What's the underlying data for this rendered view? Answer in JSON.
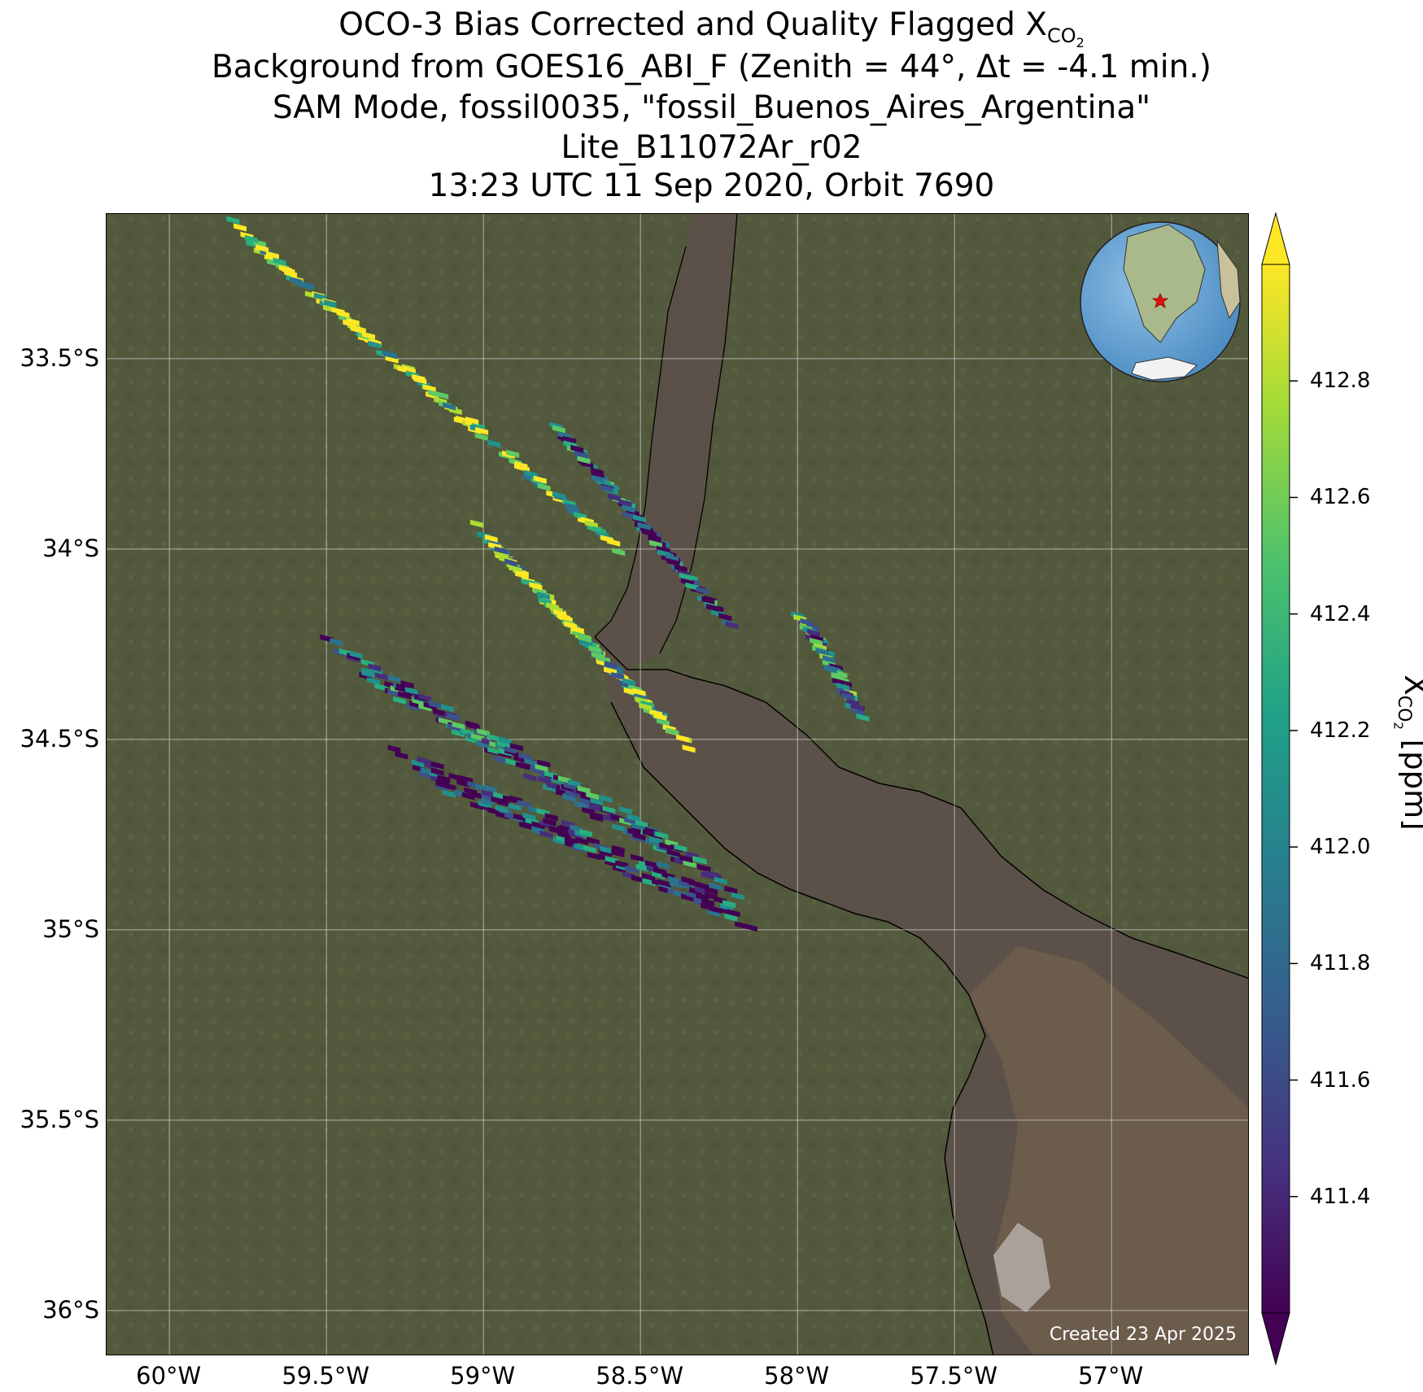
{
  "title": {
    "line1_prefix": "OCO-3 Bias Corrected and Quality Flagged X",
    "line1_sub": "CO",
    "line1_subsub": "2",
    "line2": "Background from GOES16_ABI_F (Zenith = 44°, Δt = -4.1 min.)",
    "line3": "SAM Mode, fossil0035, \"fossil_Buenos_Aires_Argentina\"",
    "line4": "Lite_B11072Ar_r02",
    "line5": "13:23 UTC 11 Sep 2020, Orbit 7690"
  },
  "map": {
    "lon_range": [
      -60.2,
      -56.56
    ],
    "lat_range": [
      -36.12,
      -33.12
    ],
    "lat_ticks": [
      {
        "value": -33.5,
        "label": "33.5°S"
      },
      {
        "value": -34.0,
        "label": "34°S"
      },
      {
        "value": -34.5,
        "label": "34.5°S"
      },
      {
        "value": -35.0,
        "label": "35°S"
      },
      {
        "value": -35.5,
        "label": "35.5°S"
      },
      {
        "value": -36.0,
        "label": "36°S"
      }
    ],
    "lon_ticks": [
      {
        "value": -60.0,
        "label": "60°W"
      },
      {
        "value": -59.5,
        "label": "59.5°W"
      },
      {
        "value": -59.0,
        "label": "59°W"
      },
      {
        "value": -58.5,
        "label": "58.5°W"
      },
      {
        "value": -58.0,
        "label": "58°W"
      },
      {
        "value": -57.5,
        "label": "57.5°W"
      },
      {
        "value": -57.0,
        "label": "57°W"
      }
    ],
    "gridlines": true,
    "colors": {
      "land": "#4d5636",
      "water": "#5b5148",
      "sediment": "#7a6650",
      "gridline": "#d9d9d9",
      "coast": "#000000"
    },
    "created_text": "Created 23 Apr 2025",
    "inset": {
      "content": "globe centered on South America",
      "marker": "red star",
      "marker_lon": -58.4,
      "marker_lat": -34.6
    }
  },
  "colorbar": {
    "label_prefix": "X",
    "label_sub": "CO",
    "label_subsub": "2",
    "label_suffix": " [ppm]",
    "colormap": "viridis",
    "range": [
      411.2,
      413.0
    ],
    "extend": "both",
    "ticks": [
      {
        "value": 411.4,
        "label": "411.4"
      },
      {
        "value": 411.6,
        "label": "411.6"
      },
      {
        "value": 411.8,
        "label": "411.8"
      },
      {
        "value": 412.0,
        "label": "412.0"
      },
      {
        "value": 412.2,
        "label": "412.2"
      },
      {
        "value": 412.4,
        "label": "412.4"
      },
      {
        "value": 412.6,
        "label": "412.6"
      },
      {
        "value": 412.8,
        "label": "412.8"
      }
    ]
  }
}
